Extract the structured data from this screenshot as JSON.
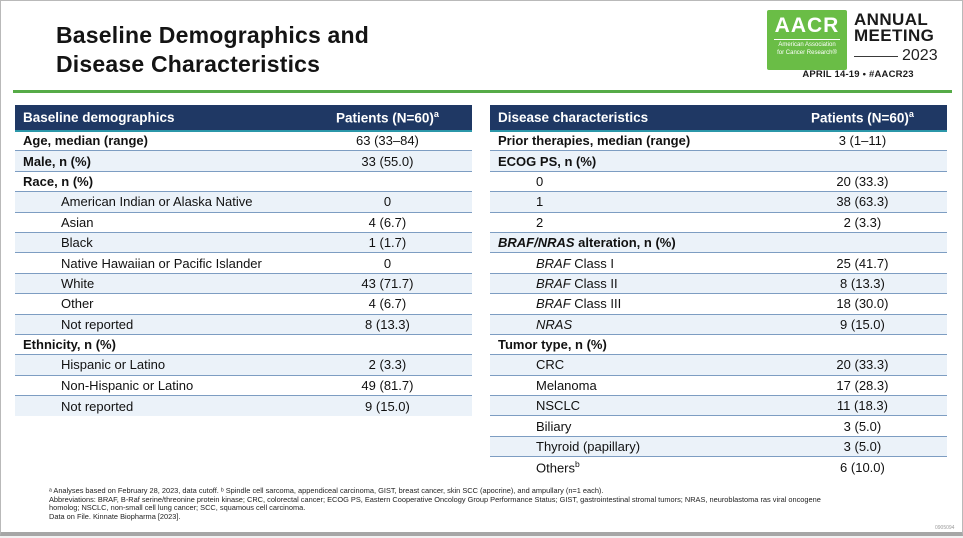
{
  "slide": {
    "title_line1": "Baseline Demographics and",
    "title_line2": "Disease Characteristics",
    "accent_green": "#56ab47",
    "header_navy": "#1f3864",
    "teal_rule": "#2b97a9",
    "doc_code": "0905094"
  },
  "logo": {
    "acronym": "AACR",
    "org_line1": "American Association",
    "org_line2": "for Cancer Research®",
    "event_line1": "ANNUAL",
    "event_line2": "MEETING",
    "year": "2023",
    "date_hashtag": "APRIL 14-19 • #AACR23",
    "green": "#6abd46"
  },
  "tables": {
    "left": {
      "header": {
        "label": "Baseline demographics",
        "value": "Patients (N=60)",
        "sup": "a"
      },
      "rows": [
        {
          "label": "Age, median (range)",
          "value": "63 (33–84)"
        },
        {
          "label": "Male, n (%)",
          "value": "33 (55.0)"
        },
        {
          "label": "Race, n (%)",
          "value": ""
        },
        {
          "label": "American Indian or Alaska Native",
          "value": "0"
        },
        {
          "label": "Asian",
          "value": "4 (6.7)"
        },
        {
          "label": "Black",
          "value": "1 (1.7)"
        },
        {
          "label": "Native Hawaiian or Pacific Islander",
          "value": "0"
        },
        {
          "label": "White",
          "value": "43 (71.7)"
        },
        {
          "label": "Other",
          "value": "4 (6.7)"
        },
        {
          "label": "Not reported",
          "value": "8 (13.3)"
        },
        {
          "label": "Ethnicity, n (%)",
          "value": ""
        },
        {
          "label": "Hispanic or Latino",
          "value": "2 (3.3)"
        },
        {
          "label": "Non-Hispanic or Latino",
          "value": "49 (81.7)"
        },
        {
          "label": "Not reported",
          "value": "9 (15.0)"
        }
      ]
    },
    "right": {
      "header": {
        "label": "Disease characteristics",
        "value": "Patients (N=60)",
        "sup": "a"
      },
      "rows": [
        {
          "label": "Prior therapies, median (range)",
          "value": "3 (1–11)"
        },
        {
          "label": "ECOG PS, n (%)",
          "value": ""
        },
        {
          "label": "0",
          "value": "20 (33.3)"
        },
        {
          "label": "1",
          "value": "38 (63.3)"
        },
        {
          "label": "2",
          "value": "2 (3.3)"
        },
        {
          "ital": "BRAF/NRAS",
          "label": " alteration, n (%)",
          "value": ""
        },
        {
          "ital": "BRAF",
          "label": " Class I",
          "value": "25 (41.7)"
        },
        {
          "ital": "BRAF",
          "label": " Class II",
          "value": "8 (13.3)"
        },
        {
          "ital": "BRAF",
          "label": " Class III",
          "value": "18 (30.0)"
        },
        {
          "ital": "NRAS",
          "label": "",
          "value": "9 (15.0)"
        },
        {
          "label": "Tumor type, n (%)",
          "value": ""
        },
        {
          "label": "CRC",
          "value": "20 (33.3)"
        },
        {
          "label": "Melanoma",
          "value": "17 (28.3)"
        },
        {
          "label": "NSCLC",
          "value": "11 (18.3)"
        },
        {
          "label": "Biliary",
          "value": "3 (5.0)"
        },
        {
          "label": "Thyroid (papillary)",
          "value": "3 (5.0)"
        },
        {
          "label": "Others",
          "sup": "b",
          "value": "6 (10.0)"
        }
      ]
    }
  },
  "footnotes": {
    "lines": [
      "ᵃ Analyses based on February 28, 2023, data cutoff. ᵇ Spindle cell sarcoma, appendiceal carcinoma, GIST, breast cancer, skin SCC (apocrine), and ampullary (n=1 each).",
      "Abbreviations: BRAF, B-Raf serine/threonine protein kinase; CRC, colorectal cancer; ECOG PS, Eastern Cooperative Oncology Group Performance Status; GIST, gastrointestinal stromal tumors; NRAS, neuroblastoma ras viral oncogene",
      "homolog; NSCLC, non-small cell lung cancer; SCC, squamous cell carcinoma.",
      "Data on File. Kinnate Biopharma [2023]."
    ]
  }
}
